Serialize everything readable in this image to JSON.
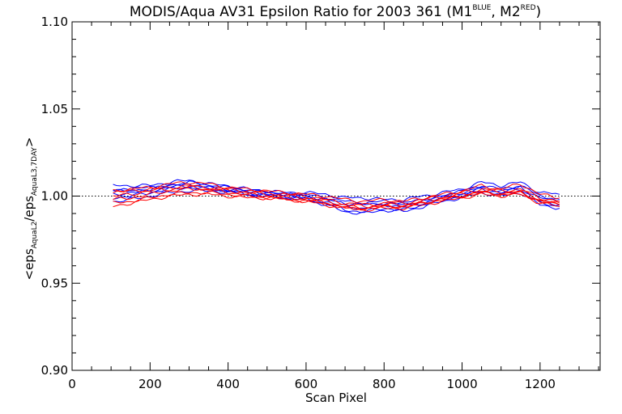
{
  "chart_data": {
    "type": "line",
    "title_main": "MODIS/Aqua AV31 Epsilon Ratio for 2003 361 (M1",
    "title_sup1": "BLUE",
    "title_mid": ", M2",
    "title_sup2": "RED",
    "title_end": ")",
    "xlabel": "Scan Pixel",
    "ylabel_parts": {
      "open": "<eps",
      "sub1": "AquaL2",
      "slash": "/eps",
      "sub2": "AquaL3,7DAY",
      "close": ">"
    },
    "xlim": [
      0,
      1354
    ],
    "ylim": [
      0.9,
      1.1
    ],
    "x_ticks": [
      0,
      200,
      400,
      600,
      800,
      1000,
      1200
    ],
    "x_tick_labels": [
      "0",
      "200",
      "400",
      "600",
      "800",
      "1000",
      "1200"
    ],
    "y_ticks": [
      0.9,
      0.95,
      1.0,
      1.05,
      1.1
    ],
    "y_tick_labels": [
      "0.90",
      "0.95",
      "1.00",
      "1.05",
      "1.10"
    ],
    "reference_line": 1.0,
    "colors": {
      "M1": "#0000ff",
      "M2": "#ff0000",
      "axis": "#000000"
    },
    "x": [
      105,
      150,
      200,
      250,
      300,
      350,
      400,
      450,
      500,
      550,
      600,
      650,
      700,
      750,
      800,
      850,
      900,
      950,
      1000,
      1050,
      1100,
      1150,
      1200,
      1250
    ],
    "series": [
      {
        "group": "M1",
        "values": [
          1.006,
          1.006,
          1.006,
          1.008,
          1.009,
          1.007,
          1.006,
          1.004,
          1.003,
          1.002,
          1.002,
          1.001,
          0.999,
          0.999,
          0.998,
          0.998,
          1.0,
          1.002,
          1.004,
          1.008,
          1.006,
          1.008,
          1.002,
          1.001
        ]
      },
      {
        "group": "M1",
        "values": [
          1.003,
          1.004,
          1.005,
          1.006,
          1.007,
          1.006,
          1.004,
          1.003,
          1.002,
          1.001,
          1.001,
          0.999,
          0.997,
          0.996,
          0.997,
          0.996,
          0.998,
          1.0,
          1.002,
          1.005,
          1.003,
          1.005,
          0.999,
          0.997
        ]
      },
      {
        "group": "M1",
        "values": [
          1.001,
          1.002,
          1.003,
          1.005,
          1.006,
          1.005,
          1.003,
          1.002,
          1.001,
          1.0,
          0.999,
          0.997,
          0.994,
          0.993,
          0.995,
          0.994,
          0.996,
          0.999,
          1.001,
          1.004,
          1.002,
          1.004,
          0.997,
          0.995
        ]
      },
      {
        "group": "M1",
        "values": [
          0.999,
          1.0,
          1.002,
          1.004,
          1.005,
          1.004,
          1.003,
          1.001,
          1.0,
          0.999,
          0.998,
          0.996,
          0.992,
          0.991,
          0.993,
          0.992,
          0.995,
          0.998,
          1.0,
          1.003,
          1.001,
          1.003,
          0.996,
          0.994
        ]
      },
      {
        "group": "M1",
        "values": [
          0.997,
          0.998,
          1.0,
          1.002,
          1.003,
          1.003,
          1.002,
          1.001,
          1.0,
          0.999,
          0.998,
          0.995,
          0.991,
          0.99,
          0.992,
          0.991,
          0.994,
          0.997,
          0.999,
          1.002,
          1.0,
          1.002,
          0.995,
          0.993
        ]
      },
      {
        "group": "M1",
        "values": [
          1.004,
          1.003,
          1.004,
          1.006,
          1.008,
          1.006,
          1.005,
          1.003,
          1.002,
          1.001,
          1.0,
          0.998,
          0.996,
          0.995,
          0.996,
          0.995,
          0.997,
          1.0,
          1.003,
          1.006,
          1.004,
          1.006,
          1.0,
          0.998
        ]
      },
      {
        "group": "M2",
        "values": [
          1.002,
          1.003,
          1.004,
          1.005,
          1.006,
          1.005,
          1.004,
          1.003,
          1.002,
          1.001,
          1.0,
          0.998,
          0.996,
          0.995,
          0.996,
          0.996,
          0.998,
          1.0,
          1.002,
          1.004,
          1.003,
          1.004,
          0.999,
          0.997
        ]
      },
      {
        "group": "M2",
        "values": [
          1.0,
          1.001,
          1.003,
          1.004,
          1.005,
          1.004,
          1.003,
          1.002,
          1.001,
          1.0,
          0.999,
          0.997,
          0.995,
          0.994,
          0.995,
          0.995,
          0.997,
          0.999,
          1.001,
          1.003,
          1.002,
          1.003,
          0.998,
          0.996
        ]
      },
      {
        "group": "M2",
        "values": [
          0.998,
          0.999,
          1.001,
          1.003,
          1.004,
          1.004,
          1.002,
          1.001,
          1.0,
          0.999,
          0.998,
          0.996,
          0.994,
          0.993,
          0.994,
          0.994,
          0.996,
          0.998,
          1.0,
          1.002,
          1.001,
          1.002,
          0.997,
          0.995
        ]
      },
      {
        "group": "M2",
        "values": [
          0.996,
          0.997,
          0.999,
          1.001,
          1.002,
          1.002,
          1.001,
          1.0,
          0.999,
          0.998,
          0.997,
          0.996,
          0.993,
          0.992,
          0.993,
          0.993,
          0.995,
          0.997,
          0.999,
          1.001,
          1.0,
          1.001,
          0.996,
          0.994
        ]
      },
      {
        "group": "M2",
        "values": [
          0.994,
          0.996,
          0.998,
          1.0,
          1.001,
          1.001,
          1.0,
          0.999,
          0.999,
          0.998,
          0.997,
          0.995,
          0.993,
          0.993,
          0.994,
          0.994,
          0.996,
          0.998,
          1.0,
          1.002,
          1.001,
          1.002,
          0.997,
          0.995
        ]
      },
      {
        "group": "M2",
        "values": [
          1.003,
          1.004,
          1.005,
          1.007,
          1.008,
          1.007,
          1.005,
          1.004,
          1.003,
          1.002,
          1.001,
          1.0,
          0.998,
          0.997,
          0.998,
          0.997,
          0.999,
          1.001,
          1.003,
          1.006,
          1.004,
          1.007,
          1.001,
          0.999
        ]
      }
    ]
  }
}
